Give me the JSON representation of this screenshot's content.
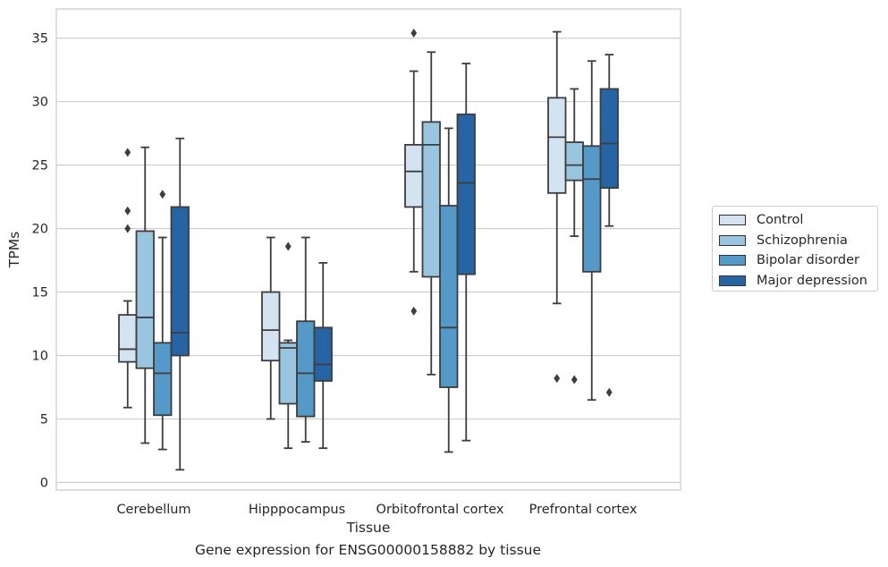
{
  "caption": "Gene expression for ENSG00000158882 by tissue",
  "chart_data": {
    "type": "box",
    "xlabel": "Tissue",
    "ylabel": "TPMs",
    "ylim": [
      -0.6,
      37.3
    ],
    "yticks": [
      0,
      5,
      10,
      15,
      20,
      25,
      30,
      35
    ],
    "grid": "horizontal",
    "legend_position": "right",
    "categories": [
      "Cerebellum",
      "Hipppocampus",
      "Orbitofrontal cortex",
      "Prefrontal cortex"
    ],
    "series": [
      {
        "name": "Control",
        "color": "#d4e3f2",
        "boxes": [
          {
            "whisker_low": 5.9,
            "q1": 9.5,
            "median": 10.5,
            "q3": 13.2,
            "whisker_high": 14.3,
            "outliers": [
              26.0,
              21.4,
              20.0
            ]
          },
          {
            "whisker_low": 5.0,
            "q1": 9.6,
            "median": 12.0,
            "q3": 15.0,
            "whisker_high": 19.3,
            "outliers": []
          },
          {
            "whisker_low": 16.6,
            "q1": 21.7,
            "median": 24.5,
            "q3": 26.6,
            "whisker_high": 32.4,
            "outliers": [
              35.4,
              13.5
            ]
          },
          {
            "whisker_low": 14.1,
            "q1": 22.8,
            "median": 27.2,
            "q3": 30.3,
            "whisker_high": 35.5,
            "outliers": [
              8.2
            ]
          }
        ]
      },
      {
        "name": "Schizophrenia",
        "color": "#9ac5e0",
        "boxes": [
          {
            "whisker_low": 3.1,
            "q1": 9.0,
            "median": 13.0,
            "q3": 19.8,
            "whisker_high": 26.4,
            "outliers": []
          },
          {
            "whisker_low": 2.7,
            "q1": 6.2,
            "median": 10.6,
            "q3": 11.0,
            "whisker_high": 11.2,
            "outliers": [
              18.6
            ]
          },
          {
            "whisker_low": 8.5,
            "q1": 16.2,
            "median": 26.6,
            "q3": 28.4,
            "whisker_high": 33.9,
            "outliers": []
          },
          {
            "whisker_low": 19.4,
            "q1": 23.8,
            "median": 25.0,
            "q3": 26.8,
            "whisker_high": 31.0,
            "outliers": [
              8.1
            ]
          }
        ]
      },
      {
        "name": "Bipolar disorder",
        "color": "#5599c8",
        "boxes": [
          {
            "whisker_low": 2.6,
            "q1": 5.3,
            "median": 8.6,
            "q3": 11.0,
            "whisker_high": 19.3,
            "outliers": [
              22.7
            ]
          },
          {
            "whisker_low": 3.2,
            "q1": 5.2,
            "median": 8.6,
            "q3": 12.7,
            "whisker_high": 19.3,
            "outliers": []
          },
          {
            "whisker_low": 2.4,
            "q1": 7.5,
            "median": 12.2,
            "q3": 21.8,
            "whisker_high": 27.9,
            "outliers": []
          },
          {
            "whisker_low": 6.5,
            "q1": 16.6,
            "median": 23.9,
            "q3": 26.5,
            "whisker_high": 33.2,
            "outliers": []
          }
        ]
      },
      {
        "name": "Major depression",
        "color": "#2764a3",
        "boxes": [
          {
            "whisker_low": 1.0,
            "q1": 10.0,
            "median": 11.8,
            "q3": 21.7,
            "whisker_high": 27.1,
            "outliers": []
          },
          {
            "whisker_low": 2.7,
            "q1": 8.0,
            "median": 9.3,
            "q3": 12.2,
            "whisker_high": 17.3,
            "outliers": []
          },
          {
            "whisker_low": 3.3,
            "q1": 16.4,
            "median": 23.6,
            "q3": 29.0,
            "whisker_high": 33.0,
            "outliers": []
          },
          {
            "whisker_low": 20.2,
            "q1": 23.2,
            "median": 26.7,
            "q3": 31.0,
            "whisker_high": 33.7,
            "outliers": [
              7.1
            ]
          }
        ]
      }
    ]
  }
}
